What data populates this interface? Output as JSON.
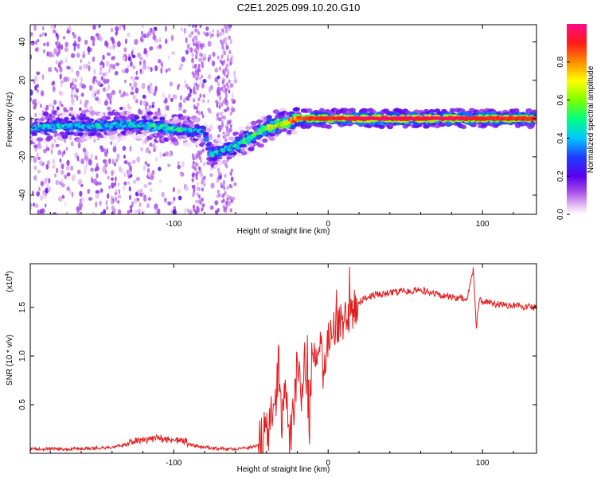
{
  "title": "C2E1.2025.099.10.20.G10",
  "colors": {
    "snr_line": "#e41a1c",
    "frame": "#000000",
    "background": "#ffffff"
  },
  "chart_data": [
    {
      "type": "heatmap",
      "xlabel": "Height of straight line (km)",
      "ylabel": "Frequency (Hz)",
      "xlim": [
        -193,
        135
      ],
      "ylim": [
        -50,
        49
      ],
      "x_ticks": [
        -100,
        0,
        100
      ],
      "x_tick_labels": [
        "-100",
        "0",
        "100"
      ],
      "y_ticks": [
        -40,
        -20,
        0,
        20,
        40
      ],
      "y_tick_labels": [
        "-40",
        "-20",
        "0",
        "20",
        "40"
      ],
      "colorbar": {
        "label": "Normalized spectral amplitude",
        "range": [
          0,
          1
        ],
        "ticks": [
          0.0,
          0.2,
          0.4,
          0.6,
          0.8
        ],
        "tick_labels": [
          "0.0",
          "0.2",
          "0.4",
          "0.6",
          "0.8"
        ],
        "colormap": "rainbow"
      },
      "ridge": {
        "x": [
          -193,
          -175,
          -150,
          -125,
          -110,
          -95,
          -80,
          -76,
          -70,
          -60,
          -50,
          -40,
          -30,
          -20,
          -10,
          0,
          20,
          50,
          80,
          100,
          135
        ],
        "y": [
          -5,
          -4,
          -4,
          -3,
          -4,
          -6,
          -7,
          -19,
          -17,
          -14,
          -10,
          -5,
          -3,
          0,
          0,
          0,
          0,
          0,
          0,
          0,
          0
        ],
        "amplitude": [
          0.35,
          0.4,
          0.4,
          0.4,
          0.45,
          0.45,
          0.3,
          0.35,
          0.4,
          0.45,
          0.5,
          0.6,
          0.7,
          0.85,
          0.9,
          0.9,
          0.95,
          0.95,
          0.95,
          0.9,
          0.9
        ]
      },
      "grid": false
    },
    {
      "type": "line",
      "xlabel": "Height of straight line (km)",
      "ylabel": "SNR (10 * v/v)",
      "y_multiplier_label": "(x10",
      "y_multiplier_exp": "4",
      "xlim": [
        -193,
        135
      ],
      "ylim": [
        0,
        1.95
      ],
      "x_ticks": [
        -100,
        0,
        100
      ],
      "x_tick_labels": [
        "-100",
        "0",
        "100"
      ],
      "y_ticks": [
        0.5,
        1.0,
        1.5
      ],
      "y_tick_labels": [
        "0.5",
        "1.0",
        "1.5"
      ],
      "series": [
        {
          "x": [
            -193,
            -170,
            -150,
            -135,
            -125,
            -115,
            -105,
            -95,
            -85,
            -75,
            -65,
            -60,
            -55,
            -50,
            -45,
            -40,
            -35,
            -32,
            -30,
            -27,
            -25,
            -22,
            -20,
            -18,
            -15,
            -12,
            -10,
            -8,
            -5,
            -3,
            0,
            5,
            10,
            15,
            20,
            25,
            30,
            40,
            50,
            60,
            70,
            80,
            90,
            94,
            96,
            98,
            100,
            105,
            110,
            120,
            135
          ],
          "y": [
            0.04,
            0.04,
            0.05,
            0.07,
            0.11,
            0.14,
            0.13,
            0.12,
            0.07,
            0.05,
            0.04,
            0.04,
            0.05,
            0.06,
            0.08,
            0.2,
            0.4,
            0.9,
            0.3,
            0.6,
            0.15,
            0.5,
            1.0,
            0.6,
            0.95,
            0.35,
            1.15,
            1.02,
            1.18,
            0.8,
            1.2,
            1.3,
            1.35,
            1.45,
            1.55,
            1.6,
            1.63,
            1.65,
            1.67,
            1.68,
            1.64,
            1.6,
            1.6,
            1.88,
            1.3,
            1.62,
            1.55,
            1.55,
            1.53,
            1.52,
            1.5
          ]
        }
      ],
      "grid": false
    }
  ]
}
